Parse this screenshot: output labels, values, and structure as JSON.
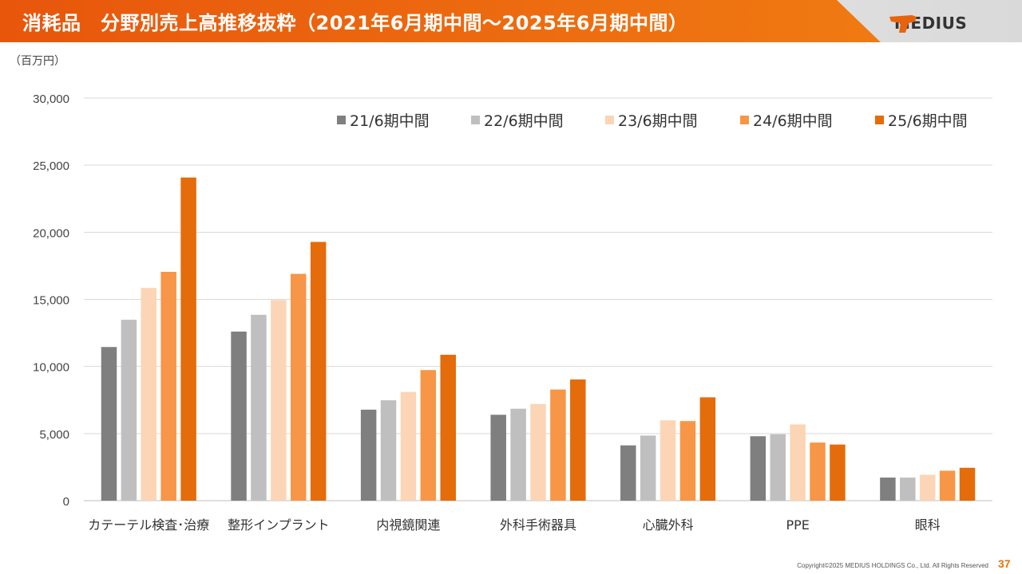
{
  "header": {
    "title": "消耗品　分野別売上高推移抜粋（2021年6月期中間～2025年6月期中間）",
    "logo_text": "MEDIUS",
    "accent": "#E8640C"
  },
  "footer": {
    "copyright": "Copyright©2025 MEDIUS HOLDINGS Co., Ltd. All Rights Reserved",
    "page": "37"
  },
  "chart_data": {
    "type": "bar",
    "unit_label": "（百万円）",
    "categories": [
      "カテーテル検査･治療",
      "整形インプラント",
      "内視鏡関連",
      "外科手術器具",
      "心臓外科",
      "PPE",
      "眼科"
    ],
    "series": [
      {
        "name": "21/6期中間",
        "color": "#7F7F7F",
        "values": [
          11450,
          12600,
          6780,
          6400,
          4120,
          4800,
          1720
        ]
      },
      {
        "name": "22/6期中間",
        "color": "#BFBFBF",
        "values": [
          13480,
          13850,
          7480,
          6850,
          4850,
          4950,
          1720
        ]
      },
      {
        "name": "23/6期中間",
        "color": "#FBD5B5",
        "values": [
          15850,
          14950,
          8100,
          7200,
          5980,
          5680,
          1930
        ]
      },
      {
        "name": "24/6期中間",
        "color": "#F79646",
        "values": [
          17050,
          16900,
          9730,
          8280,
          5930,
          4330,
          2230
        ]
      },
      {
        "name": "25/6期中間",
        "color": "#E46C0A",
        "values": [
          24080,
          19280,
          10870,
          9030,
          7700,
          4180,
          2450
        ]
      }
    ],
    "ylim": [
      0,
      30000
    ],
    "yticks": [
      "0",
      "5,000",
      "10,000",
      "15,000",
      "20,000",
      "25,000",
      "30,000"
    ],
    "grid": true,
    "legend": "top-right"
  }
}
